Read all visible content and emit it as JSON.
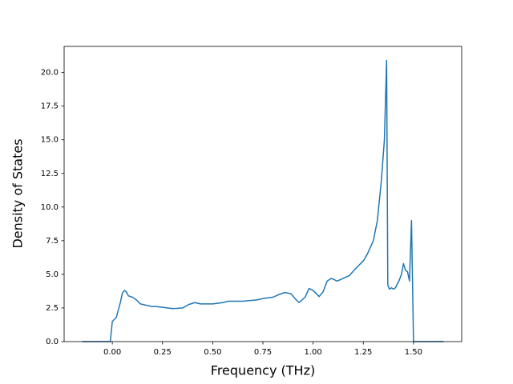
{
  "chart_data": {
    "type": "line",
    "x_label": "Frequency (THz)",
    "y_label": "Density of States",
    "xlim": [
      -0.24,
      1.74
    ],
    "ylim": [
      0,
      21.94
    ],
    "xticks": [
      {
        "value": 0,
        "label": "0.00"
      },
      0.25,
      {
        "value": 0.5,
        "label": "0.50"
      },
      0.75,
      {
        "value": 1,
        "label": "1.00"
      },
      1.25,
      {
        "value": 1.5,
        "label": "1.50"
      }
    ],
    "yticks": [
      {
        "value": 0,
        "label": "0.0"
      },
      2.5,
      {
        "value": 5,
        "label": "5.0"
      },
      7.5,
      {
        "value": 10,
        "label": "10.0"
      },
      12.5,
      {
        "value": 15,
        "label": "15.0"
      },
      17.5,
      {
        "value": 20,
        "label": "20.0"
      }
    ],
    "grid": false,
    "x": [
      -0.15,
      -0.01,
      0.0,
      0.02,
      0.04,
      0.05,
      0.06,
      0.07,
      0.08,
      0.1,
      0.12,
      0.14,
      0.17,
      0.2,
      0.22,
      0.25,
      0.3,
      0.35,
      0.38,
      0.41,
      0.44,
      0.5,
      0.55,
      0.58,
      0.65,
      0.72,
      0.75,
      0.8,
      0.83,
      0.86,
      0.89,
      0.91,
      0.93,
      0.96,
      0.98,
      1.0,
      1.03,
      1.05,
      1.07,
      1.09,
      1.12,
      1.15,
      1.18,
      1.21,
      1.25,
      1.27,
      1.3,
      1.32,
      1.34,
      1.355,
      1.366,
      1.372,
      1.38,
      1.39,
      1.4,
      1.41,
      1.43,
      1.44,
      1.45,
      1.46,
      1.47,
      1.48,
      1.49,
      1.5,
      1.65
    ],
    "series": [
      {
        "color": "#1f77b4",
        "values": [
          0,
          0,
          1.5,
          1.8,
          2.9,
          3.6,
          3.8,
          3.7,
          3.4,
          3.3,
          3.1,
          2.8,
          2.7,
          2.6,
          2.6,
          2.55,
          2.45,
          2.5,
          2.75,
          2.9,
          2.8,
          2.8,
          2.9,
          3.0,
          3.0,
          3.1,
          3.2,
          3.3,
          3.5,
          3.65,
          3.55,
          3.2,
          2.9,
          3.3,
          3.95,
          3.8,
          3.35,
          3.7,
          4.5,
          4.7,
          4.5,
          4.7,
          4.9,
          5.4,
          6.0,
          6.5,
          7.5,
          9.0,
          12.0,
          15.0,
          20.9,
          4.2,
          3.9,
          4.0,
          3.9,
          4.0,
          4.6,
          5.0,
          5.8,
          5.3,
          5.2,
          4.5,
          9.0,
          0,
          0
        ]
      }
    ]
  }
}
